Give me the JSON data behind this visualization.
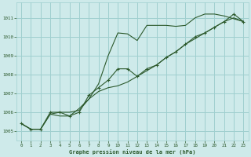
{
  "title": "Graphe pression niveau de la mer (hPa)",
  "background_color": "#ceeaea",
  "grid_color": "#9fcfcf",
  "line_color": "#2d5a2d",
  "xlim": [
    -0.5,
    23.5
  ],
  "ylim": [
    1004.5,
    1011.8
  ],
  "xticks": [
    0,
    1,
    2,
    3,
    4,
    5,
    6,
    7,
    8,
    9,
    10,
    11,
    12,
    13,
    14,
    15,
    16,
    17,
    18,
    19,
    20,
    21,
    22,
    23
  ],
  "yticks": [
    1005,
    1006,
    1007,
    1008,
    1009,
    1010,
    1011
  ],
  "series1_x": [
    0,
    1,
    2,
    3,
    4,
    5,
    6,
    7,
    8,
    9,
    10,
    11,
    12,
    13,
    14,
    15,
    16,
    17,
    18,
    19,
    20,
    21,
    22,
    23
  ],
  "series1_y": [
    1005.4,
    1005.1,
    1005.1,
    1005.9,
    1006.0,
    1006.0,
    1006.1,
    1006.7,
    1007.1,
    1007.3,
    1007.4,
    1007.6,
    1007.9,
    1008.2,
    1008.5,
    1008.9,
    1009.2,
    1009.6,
    1009.9,
    1010.2,
    1010.5,
    1010.8,
    1011.0,
    1010.8
  ],
  "series2_x": [
    0,
    1,
    2,
    3,
    4,
    5,
    6,
    7,
    8,
    9,
    10,
    11,
    12,
    13,
    14,
    15,
    16,
    17,
    18,
    19,
    20,
    21,
    22,
    23
  ],
  "series2_y": [
    1005.4,
    1005.1,
    1005.1,
    1006.0,
    1006.0,
    1005.8,
    1006.0,
    1006.9,
    1007.3,
    1007.7,
    1008.3,
    1008.3,
    1007.9,
    1008.3,
    1008.5,
    1008.9,
    1009.2,
    1009.6,
    1010.0,
    1010.2,
    1010.5,
    1010.8,
    1011.2,
    1010.8
  ],
  "series3_x": [
    0,
    1,
    2,
    3,
    4,
    5,
    6,
    7,
    8,
    9,
    10,
    11,
    12,
    13,
    14,
    15,
    16,
    17,
    18,
    19,
    20,
    21,
    22,
    23
  ],
  "series3_y": [
    1005.4,
    1005.1,
    1005.1,
    1005.9,
    1005.8,
    1005.8,
    1006.2,
    1006.7,
    1007.5,
    1009.0,
    1010.2,
    1010.15,
    1009.8,
    1010.6,
    1010.6,
    1010.6,
    1010.55,
    1010.6,
    1011.0,
    1011.2,
    1011.2,
    1011.1,
    1010.95,
    1010.8
  ]
}
